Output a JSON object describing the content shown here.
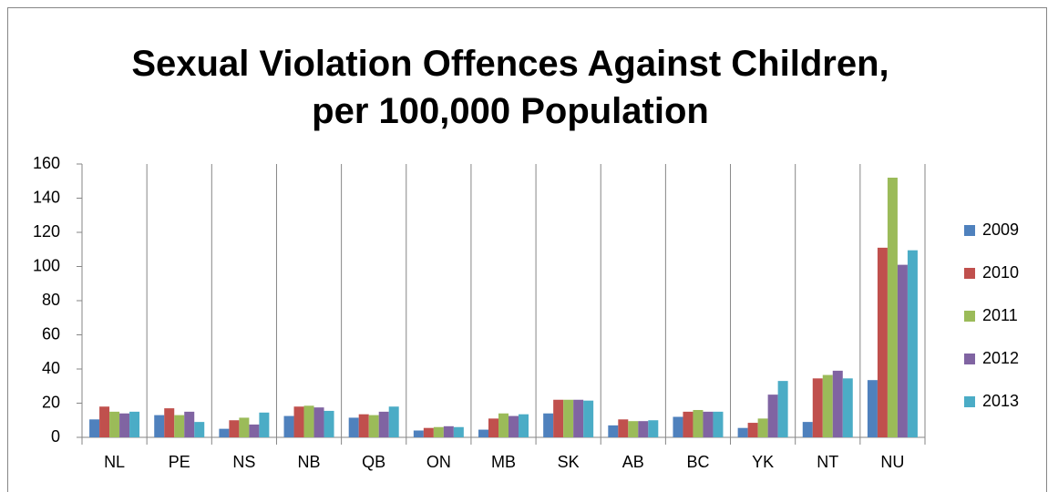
{
  "chart_data": {
    "type": "bar",
    "title": "Sexual Violation Offences Against Children, per 100,000 Population",
    "categories": [
      "NL",
      "PE",
      "NS",
      "NB",
      "QB",
      "ON",
      "MB",
      "SK",
      "AB",
      "BC",
      "YK",
      "NT",
      "NU"
    ],
    "series": [
      {
        "name": "2009",
        "color": "#4f81bd",
        "values": [
          10.5,
          13,
          5,
          12.5,
          11.5,
          4,
          4.5,
          14,
          7,
          12,
          5.5,
          9,
          33.5
        ]
      },
      {
        "name": "2010",
        "color": "#c0504d",
        "values": [
          18,
          17,
          10,
          18,
          13.5,
          5.5,
          11,
          22,
          10.5,
          15,
          8.5,
          34.5,
          111
        ]
      },
      {
        "name": "2011",
        "color": "#9bbb59",
        "values": [
          15,
          13,
          11.5,
          18.5,
          13,
          6,
          14,
          22,
          9.5,
          16,
          11,
          36.5,
          152
        ]
      },
      {
        "name": "2012",
        "color": "#8064a2",
        "values": [
          14,
          15,
          7.5,
          17.5,
          15,
          6.5,
          12.5,
          22,
          9.5,
          15,
          25,
          39,
          101
        ]
      },
      {
        "name": "2013",
        "color": "#4bacc6",
        "values": [
          15,
          9,
          14.5,
          15.5,
          18,
          6,
          13.5,
          21.5,
          10,
          15,
          33,
          34.5,
          109.5
        ]
      }
    ],
    "ylim": [
      0,
      160
    ],
    "yticks": [
      0,
      20,
      40,
      60,
      80,
      100,
      120,
      140,
      160
    ],
    "legend": "right"
  }
}
